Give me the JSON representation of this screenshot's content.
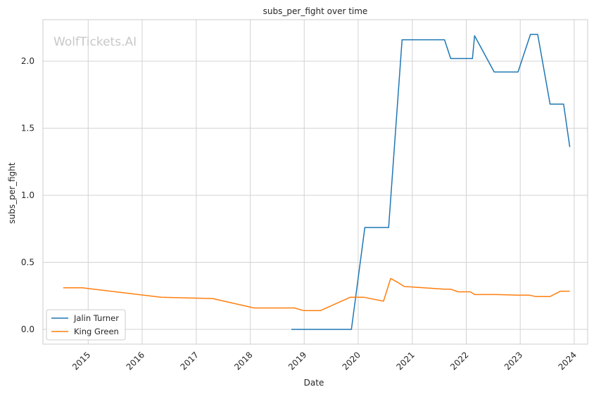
{
  "chart_data": {
    "type": "line",
    "title": "subs_per_fight over time",
    "xlabel": "Date",
    "ylabel": "subs_per_fight",
    "watermark": "WolfTickets.AI",
    "x_ticks": [
      "2015",
      "2016",
      "2017",
      "2018",
      "2019",
      "2020",
      "2021",
      "2022",
      "2023",
      "2024"
    ],
    "y_ticks": [
      "0.0",
      "0.5",
      "1.0",
      "1.5",
      "2.0"
    ],
    "xlim": [
      "2014-03-01",
      "2024-04-01"
    ],
    "ylim": [
      -0.11,
      2.31
    ],
    "grid": true,
    "legend_position": "lower-left",
    "series": [
      {
        "name": "Jalin Turner",
        "color": "#1f77b4",
        "points": [
          [
            "2018-10-06",
            0.0
          ],
          [
            "2019-11-16",
            0.0
          ],
          [
            "2020-02-15",
            0.76
          ],
          [
            "2020-07-25",
            0.76
          ],
          [
            "2020-10-24",
            2.16
          ],
          [
            "2021-08-07",
            2.16
          ],
          [
            "2021-09-18",
            2.02
          ],
          [
            "2022-02-12",
            2.02
          ],
          [
            "2022-02-26",
            2.19
          ],
          [
            "2022-07-09",
            1.92
          ],
          [
            "2022-12-17",
            1.92
          ],
          [
            "2023-03-11",
            2.2
          ],
          [
            "2023-04-29",
            2.2
          ],
          [
            "2023-07-22",
            1.68
          ],
          [
            "2023-10-21",
            1.68
          ],
          [
            "2023-12-02",
            1.36
          ]
        ]
      },
      {
        "name": "King Green",
        "color": "#ff7f0e",
        "points": [
          [
            "2014-07-16",
            0.31
          ],
          [
            "2014-11-22",
            0.31
          ],
          [
            "2016-05-08",
            0.24
          ],
          [
            "2017-04-22",
            0.23
          ],
          [
            "2018-01-27",
            0.16
          ],
          [
            "2018-10-27",
            0.16
          ],
          [
            "2018-12-29",
            0.14
          ],
          [
            "2019-04-20",
            0.14
          ],
          [
            "2019-11-09",
            0.24
          ],
          [
            "2020-02-08",
            0.24
          ],
          [
            "2020-06-20",
            0.21
          ],
          [
            "2020-08-08",
            0.38
          ],
          [
            "2020-09-26",
            0.35
          ],
          [
            "2020-11-07",
            0.32
          ],
          [
            "2021-08-07",
            0.3
          ],
          [
            "2021-09-18",
            0.3
          ],
          [
            "2021-11-06",
            0.28
          ],
          [
            "2022-01-29",
            0.28
          ],
          [
            "2022-02-26",
            0.26
          ],
          [
            "2022-07-23",
            0.26
          ],
          [
            "2022-12-17",
            0.255
          ],
          [
            "2023-03-04",
            0.255
          ],
          [
            "2023-04-15",
            0.245
          ],
          [
            "2023-07-22",
            0.245
          ],
          [
            "2023-09-30",
            0.285
          ],
          [
            "2023-12-02",
            0.285
          ]
        ]
      }
    ]
  }
}
